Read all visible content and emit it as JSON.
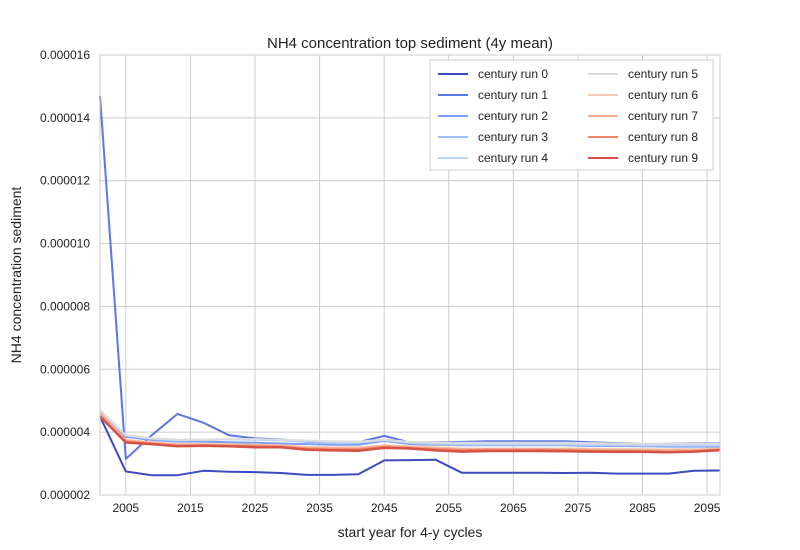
{
  "chart_data": {
    "type": "line",
    "title": "NH4 concentration top sediment (4y mean)",
    "xlabel": "start year for 4-y cycles",
    "ylabel": "NH4 concentration sediment",
    "xlim": [
      2001,
      2097
    ],
    "ylim": [
      2e-06,
      1.6e-05
    ],
    "xticks": [
      2005,
      2015,
      2025,
      2035,
      2045,
      2055,
      2065,
      2075,
      2085,
      2095
    ],
    "yticks": [
      2e-06,
      4e-06,
      6e-06,
      8e-06,
      1e-05,
      1.2e-05,
      1.4e-05,
      1.6e-05
    ],
    "ytick_labels": [
      "0.000002",
      "0.000004",
      "0.000006",
      "0.000008",
      "0.000010",
      "0.000012",
      "0.000014",
      "0.000016"
    ],
    "grid": true,
    "legend_position": "top-right",
    "x": [
      2001,
      2005,
      2009,
      2013,
      2017,
      2021,
      2025,
      2029,
      2033,
      2037,
      2041,
      2045,
      2049,
      2053,
      2057,
      2061,
      2065,
      2069,
      2073,
      2077,
      2081,
      2085,
      2089,
      2093,
      2097
    ],
    "series": [
      {
        "name": "century run 0",
        "color": "#3b4cc0",
        "values": [
          4.5e-06,
          2.75e-06,
          2.63e-06,
          2.63e-06,
          2.77e-06,
          2.74e-06,
          2.73e-06,
          2.7e-06,
          2.64e-06,
          2.64e-06,
          2.66e-06,
          3.1e-06,
          3.11e-06,
          3.12e-06,
          2.71e-06,
          2.71e-06,
          2.71e-06,
          2.71e-06,
          2.7e-06,
          2.71e-06,
          2.68e-06,
          2.68e-06,
          2.68e-06,
          2.77e-06,
          2.78e-06
        ]
      },
      {
        "name": "century run 1",
        "color": "#5977e3",
        "values": [
          1.47e-05,
          3.15e-06,
          3.9e-06,
          4.58e-06,
          4.3e-06,
          3.9e-06,
          3.8e-06,
          3.77e-06,
          3.69e-06,
          3.68e-06,
          3.68e-06,
          3.88e-06,
          3.67e-06,
          3.68e-06,
          3.69e-06,
          3.71e-06,
          3.71e-06,
          3.71e-06,
          3.71e-06,
          3.68e-06,
          3.65e-06,
          3.64e-06,
          3.64e-06,
          3.65e-06,
          3.65e-06
        ]
      },
      {
        "name": "century run 2",
        "color": "#7b9ff9",
        "values": [
          4.5e-06,
          3.85e-06,
          3.75e-06,
          3.7e-06,
          3.7e-06,
          3.68e-06,
          3.66e-06,
          3.64e-06,
          3.62e-06,
          3.6e-06,
          3.6e-06,
          3.72e-06,
          3.62e-06,
          3.6e-06,
          3.58e-06,
          3.58e-06,
          3.58e-06,
          3.58e-06,
          3.58e-06,
          3.56e-06,
          3.56e-06,
          3.55e-06,
          3.54e-06,
          3.54e-06,
          3.54e-06
        ]
      },
      {
        "name": "century run 3",
        "color": "#9ebeff",
        "values": [
          4.6e-06,
          3.9e-06,
          3.78e-06,
          3.73e-06,
          3.75e-06,
          3.77e-06,
          3.76e-06,
          3.74e-06,
          3.7e-06,
          3.68e-06,
          3.66e-06,
          3.74e-06,
          3.65e-06,
          3.62e-06,
          3.6e-06,
          3.6e-06,
          3.6e-06,
          3.6e-06,
          3.6e-06,
          3.58e-06,
          3.58e-06,
          3.57e-06,
          3.57e-06,
          3.57e-06,
          3.57e-06
        ]
      },
      {
        "name": "century run 4",
        "color": "#c0d4f5",
        "values": [
          4.7e-06,
          3.9e-06,
          3.8e-06,
          3.75e-06,
          3.76e-06,
          3.78e-06,
          3.78e-06,
          3.76e-06,
          3.72e-06,
          3.7e-06,
          3.68e-06,
          3.76e-06,
          3.67e-06,
          3.64e-06,
          3.62e-06,
          3.62e-06,
          3.62e-06,
          3.62e-06,
          3.62e-06,
          3.6e-06,
          3.6e-06,
          3.59e-06,
          3.59e-06,
          3.59e-06,
          3.59e-06
        ]
      },
      {
        "name": "century run 5",
        "color": "#dddcdc",
        "values": [
          4.7e-06,
          3.9e-06,
          3.8e-06,
          3.76e-06,
          3.76e-06,
          3.77e-06,
          3.77e-06,
          3.76e-06,
          3.73e-06,
          3.71e-06,
          3.7e-06,
          3.76e-06,
          3.69e-06,
          3.67e-06,
          3.66e-06,
          3.66e-06,
          3.66e-06,
          3.66e-06,
          3.66e-06,
          3.65e-06,
          3.64e-06,
          3.64e-06,
          3.64e-06,
          3.64e-06,
          3.64e-06
        ]
      },
      {
        "name": "century run 6",
        "color": "#f2cbb7",
        "values": [
          4.6e-06,
          3.75e-06,
          3.68e-06,
          3.62e-06,
          3.62e-06,
          3.62e-06,
          3.6e-06,
          3.58e-06,
          3.53e-06,
          3.52e-06,
          3.52e-06,
          3.58e-06,
          3.55e-06,
          3.52e-06,
          3.48e-06,
          3.48e-06,
          3.48e-06,
          3.48e-06,
          3.48e-06,
          3.47e-06,
          3.46e-06,
          3.46e-06,
          3.45e-06,
          3.46e-06,
          3.48e-06
        ]
      },
      {
        "name": "century run 7",
        "color": "#f7ac8e",
        "values": [
          4.6e-06,
          3.74e-06,
          3.66e-06,
          3.6e-06,
          3.6e-06,
          3.6e-06,
          3.58e-06,
          3.56e-06,
          3.5e-06,
          3.49e-06,
          3.48e-06,
          3.56e-06,
          3.52e-06,
          3.49e-06,
          3.46e-06,
          3.46e-06,
          3.46e-06,
          3.46e-06,
          3.46e-06,
          3.44e-06,
          3.43e-06,
          3.43e-06,
          3.42e-06,
          3.43e-06,
          3.46e-06
        ]
      },
      {
        "name": "century run 8",
        "color": "#ee8468",
        "values": [
          4.5e-06,
          3.7e-06,
          3.63e-06,
          3.57e-06,
          3.58e-06,
          3.56e-06,
          3.55e-06,
          3.53e-06,
          3.47e-06,
          3.45e-06,
          3.45e-06,
          3.53e-06,
          3.5e-06,
          3.46e-06,
          3.43e-06,
          3.44e-06,
          3.44e-06,
          3.44e-06,
          3.43e-06,
          3.41e-06,
          3.4e-06,
          3.4e-06,
          3.37e-06,
          3.39e-06,
          3.44e-06
        ]
      },
      {
        "name": "century run 9",
        "color": "#d65244",
        "values": [
          4.5e-06,
          3.67e-06,
          3.62e-06,
          3.55e-06,
          3.57e-06,
          3.55e-06,
          3.52e-06,
          3.52e-06,
          3.44e-06,
          3.42e-06,
          3.41e-06,
          3.5e-06,
          3.48e-06,
          3.42e-06,
          3.38e-06,
          3.4e-06,
          3.4e-06,
          3.4e-06,
          3.39e-06,
          3.38e-06,
          3.37e-06,
          3.37e-06,
          3.36e-06,
          3.38e-06,
          3.43e-06
        ]
      }
    ]
  }
}
